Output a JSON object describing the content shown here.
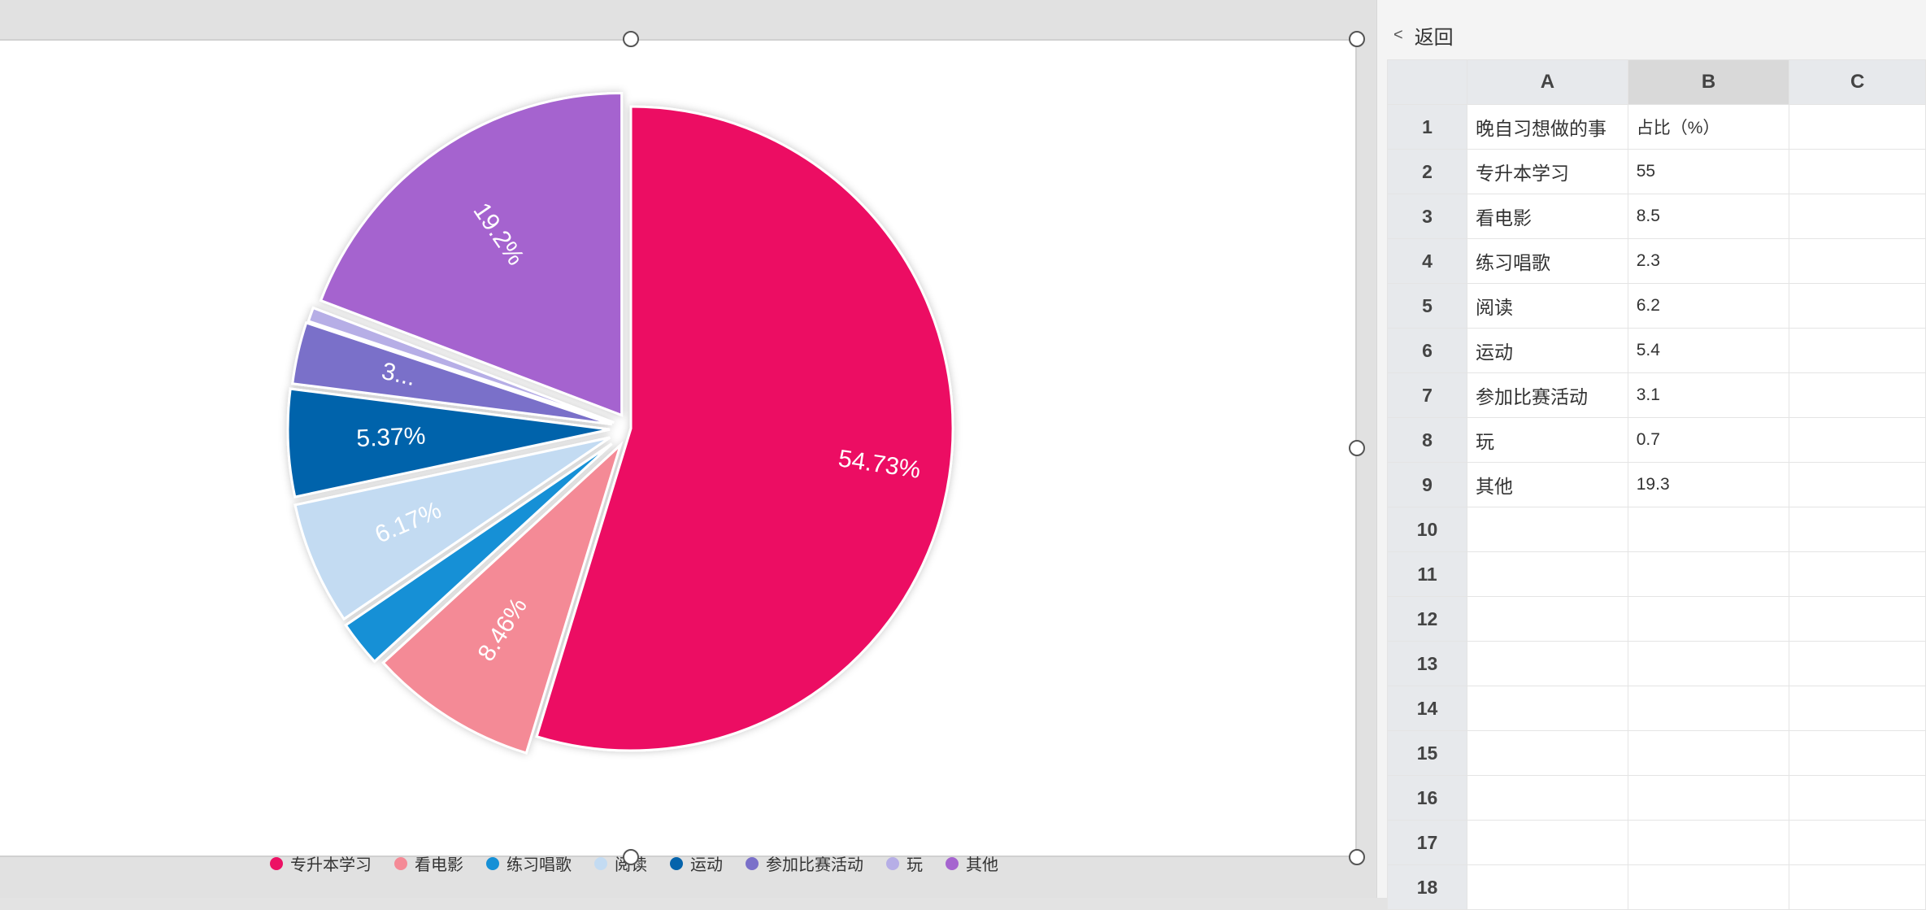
{
  "chart_data": {
    "type": "pie",
    "categories": [
      "专升本学习",
      "看电影",
      "练习唱歌",
      "阅读",
      "运动",
      "参加比赛活动",
      "玩",
      "其他"
    ],
    "values": [
      55,
      8.5,
      2.3,
      6.2,
      5.4,
      3.1,
      0.7,
      19.3
    ],
    "slice_labels": [
      "54.73%",
      "8.46%",
      "",
      "6.17%",
      "5.37%",
      "3...",
      "",
      "19.2%"
    ],
    "colors": [
      "#ec1164",
      "#f48a96",
      "#1690d6",
      "#c3dbf2",
      "#0563ab",
      "#7a70c9",
      "#b6aee6",
      "#a564cf"
    ],
    "legend_position": "bottom",
    "exploded": true
  },
  "panel": {
    "back_label": "返回",
    "back_icon": "chevron-left-icon",
    "columns": [
      "",
      "A",
      "B",
      "C"
    ],
    "rows": [
      {
        "num": "1",
        "a": "晚自习想做的事",
        "b": "占比（%）"
      },
      {
        "num": "2",
        "a": "专升本学习",
        "b": "55"
      },
      {
        "num": "3",
        "a": "看电影",
        "b": "8.5"
      },
      {
        "num": "4",
        "a": "练习唱歌",
        "b": "2.3"
      },
      {
        "num": "5",
        "a": "阅读",
        "b": "6.2"
      },
      {
        "num": "6",
        "a": "运动",
        "b": "5.4"
      },
      {
        "num": "7",
        "a": "参加比赛活动",
        "b": "3.1"
      },
      {
        "num": "8",
        "a": "玩",
        "b": "0.7"
      },
      {
        "num": "9",
        "a": "其他",
        "b": "19.3"
      },
      {
        "num": "10",
        "a": "",
        "b": ""
      },
      {
        "num": "11",
        "a": "",
        "b": ""
      },
      {
        "num": "12",
        "a": "",
        "b": ""
      },
      {
        "num": "13",
        "a": "",
        "b": ""
      },
      {
        "num": "14",
        "a": "",
        "b": ""
      },
      {
        "num": "15",
        "a": "",
        "b": ""
      },
      {
        "num": "16",
        "a": "",
        "b": ""
      },
      {
        "num": "17",
        "a": "",
        "b": ""
      },
      {
        "num": "18",
        "a": "",
        "b": ""
      }
    ]
  }
}
